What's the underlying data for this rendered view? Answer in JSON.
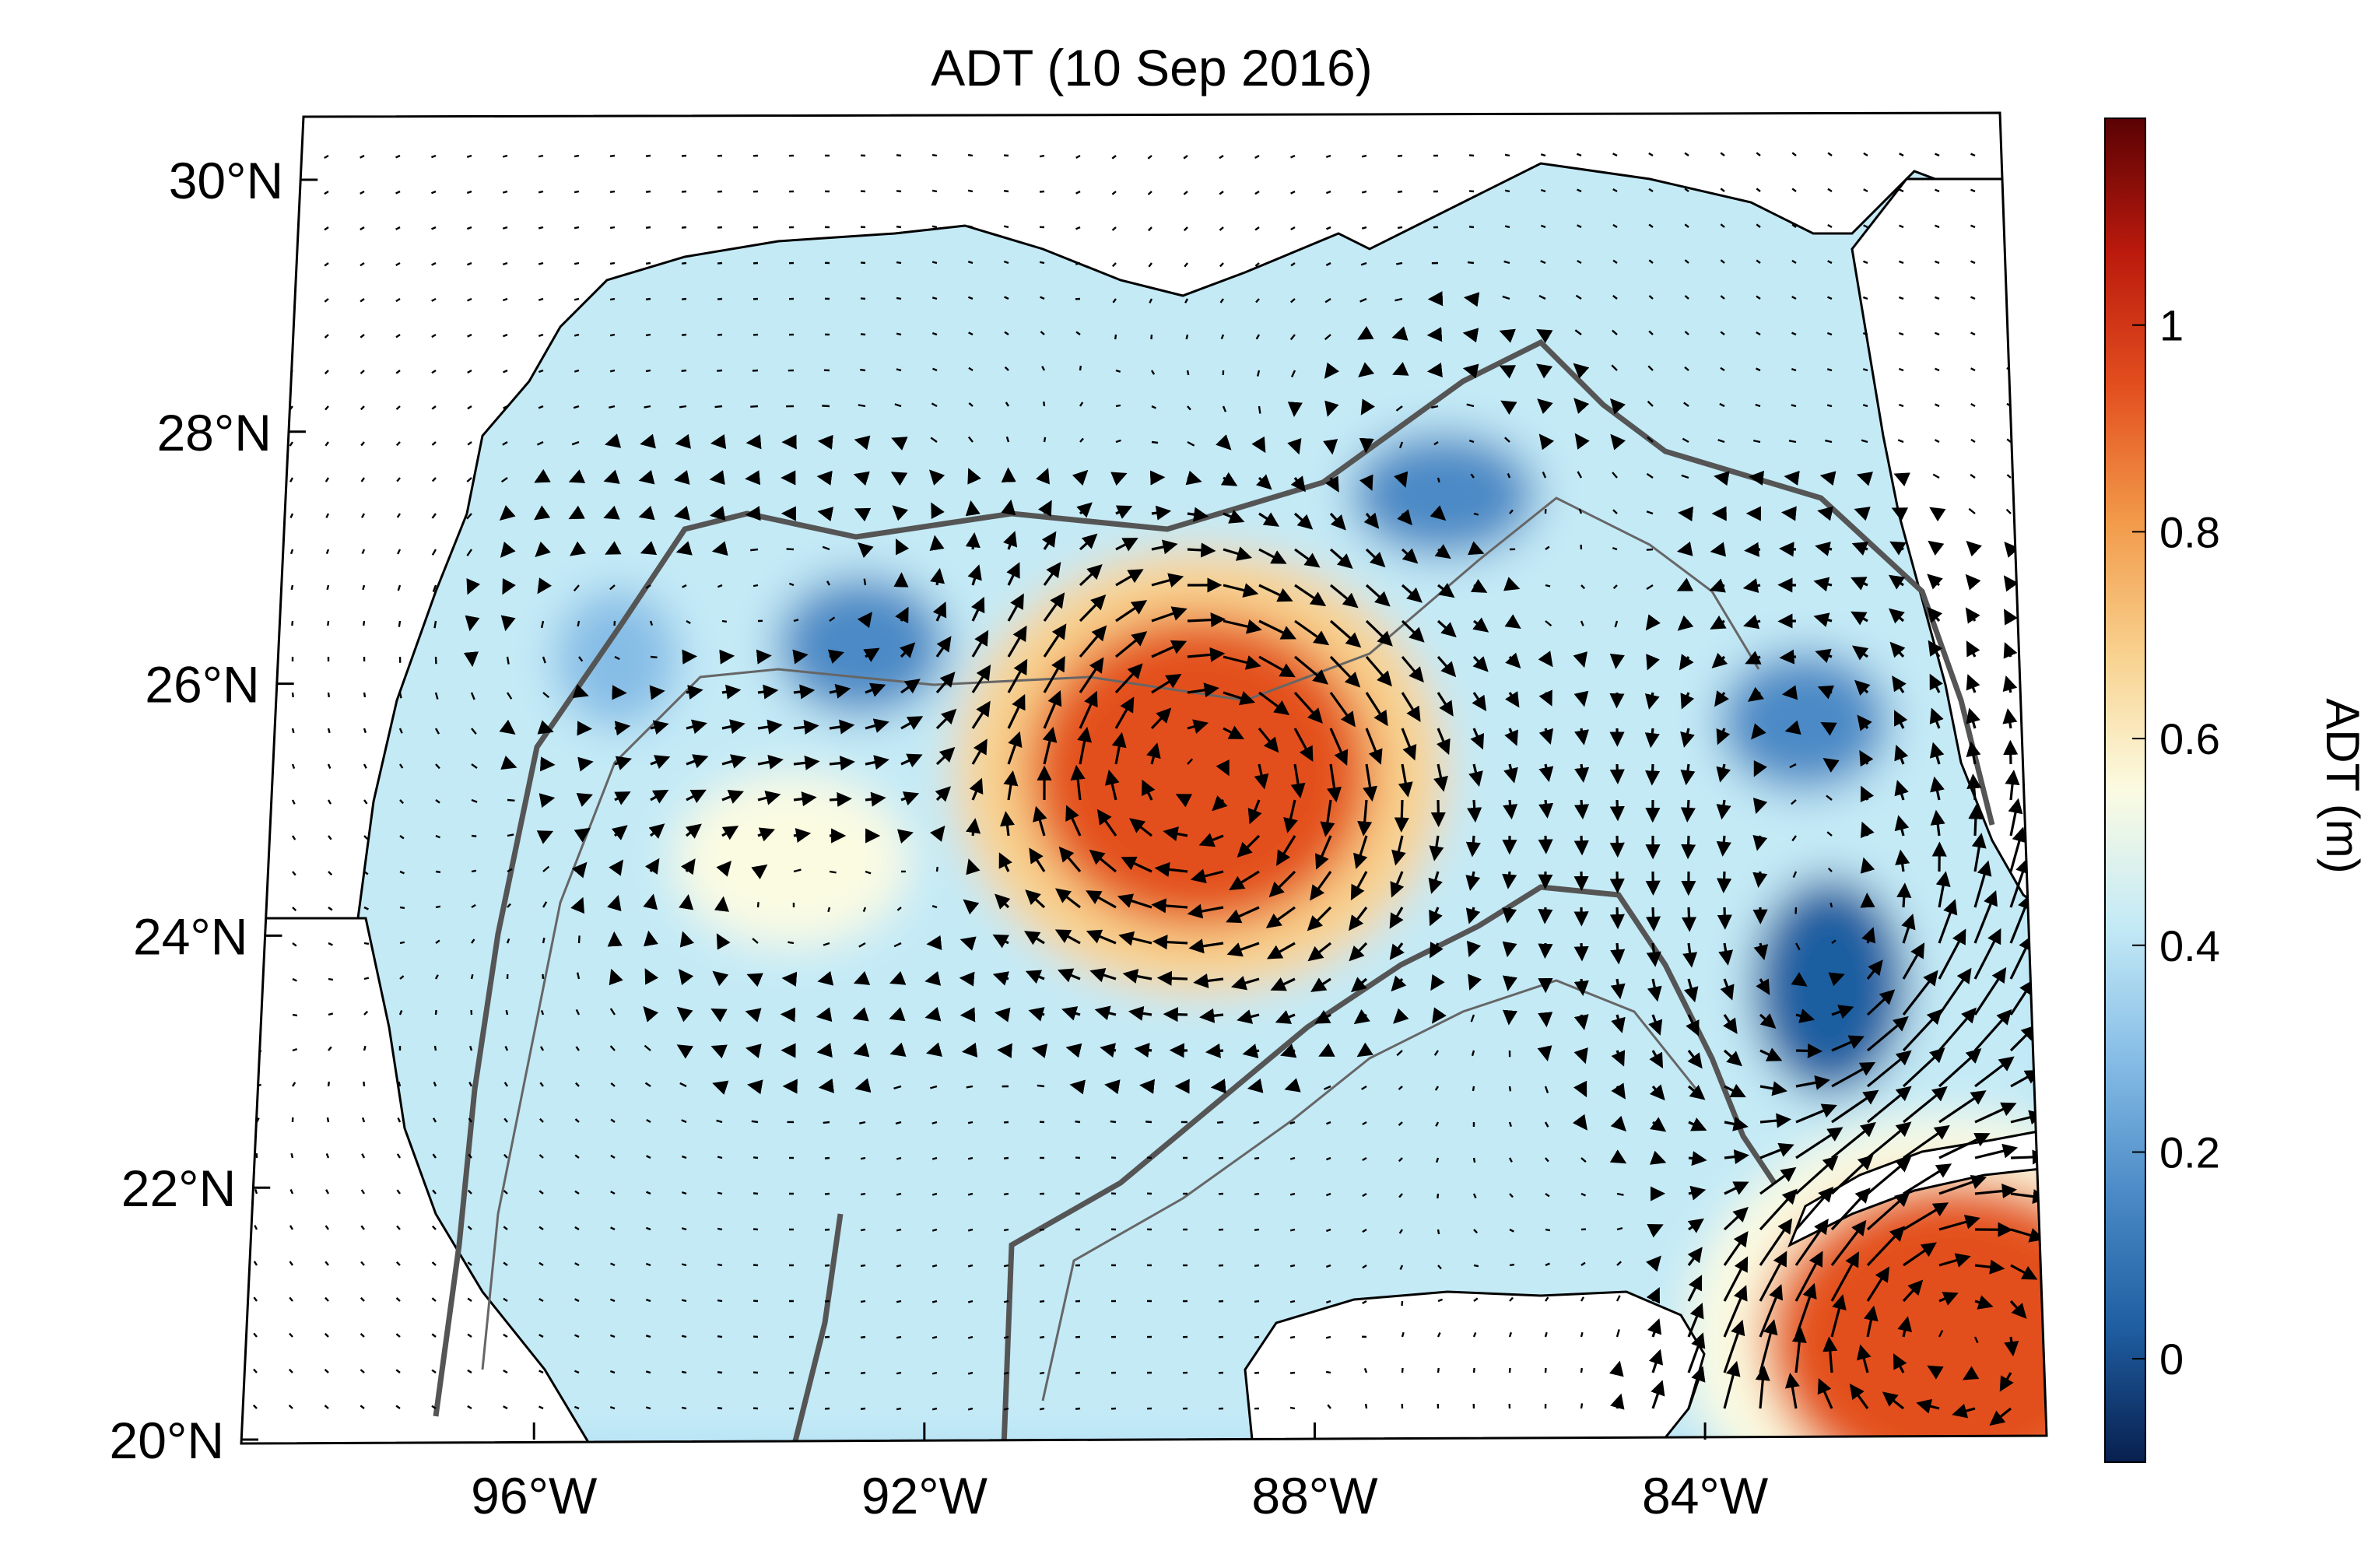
{
  "title": "ADT (10 Sep 2016)",
  "colorbar": {
    "label": "ADT (m)",
    "range": [
      -0.1,
      1.2
    ],
    "ticks": [
      {
        "value": 1.0,
        "label": "1"
      },
      {
        "value": 0.8,
        "label": "0.8"
      },
      {
        "value": 0.6,
        "label": "0.6"
      },
      {
        "value": 0.4,
        "label": "0.4"
      },
      {
        "value": 0.2,
        "label": "0.2"
      },
      {
        "value": 0.0,
        "label": "0"
      }
    ],
    "colors": [
      "#08204f",
      "#1f5ea1",
      "#4b8ac6",
      "#86bde6",
      "#c4eaf6",
      "#fbfbe2",
      "#f8d28f",
      "#f29a4a",
      "#e34f1f",
      "#bb1a0d",
      "#5a0204"
    ]
  },
  "map": {
    "lat_range": [
      20,
      30.5
    ],
    "lon_range": [
      -99,
      -80.5
    ],
    "lat_labels": [
      {
        "value": 30,
        "label": "30°N"
      },
      {
        "value": 28,
        "label": "28°N"
      },
      {
        "value": 26,
        "label": "26°N"
      },
      {
        "value": 24,
        "label": "24°N"
      },
      {
        "value": 22,
        "label": "22°N"
      },
      {
        "value": 20,
        "label": "20°N"
      }
    ],
    "lon_labels": [
      {
        "value": -96,
        "label": "96°W"
      },
      {
        "value": -92,
        "label": "92°W"
      },
      {
        "value": -88,
        "label": "88°W"
      },
      {
        "value": -84,
        "label": "84°W"
      }
    ],
    "background_adt": 0.38,
    "eddies": [
      {
        "name": "loop-current-eddy",
        "lon": -89.2,
        "lat": 25.3,
        "adt": 0.98,
        "sense": "anticyclonic"
      },
      {
        "name": "western-warm-eddy",
        "lon": -93.5,
        "lat": 24.6,
        "adt": 0.6,
        "sense": "anticyclonic"
      },
      {
        "name": "cold-eddy-north",
        "lon": -92.8,
        "lat": 26.3,
        "adt": 0.2,
        "sense": "cyclonic"
      },
      {
        "name": "cold-eddy-east",
        "lon": -82.8,
        "lat": 25.7,
        "adt": 0.12,
        "sense": "cyclonic"
      },
      {
        "name": "cold-eddy-south",
        "lon": -82.6,
        "lat": 23.6,
        "adt": 0.05,
        "sense": "cyclonic"
      },
      {
        "name": "cold-eddy-shelf",
        "lon": -86.6,
        "lat": 27.5,
        "adt": 0.22,
        "sense": "cyclonic"
      },
      {
        "name": "cold-eddy-west",
        "lon": -95.4,
        "lat": 26.2,
        "adt": 0.24,
        "sense": "cyclonic"
      },
      {
        "name": "caribbean-warm",
        "lon": -81.4,
        "lat": 20.8,
        "adt": 0.9,
        "sense": "anticyclonic"
      }
    ]
  }
}
